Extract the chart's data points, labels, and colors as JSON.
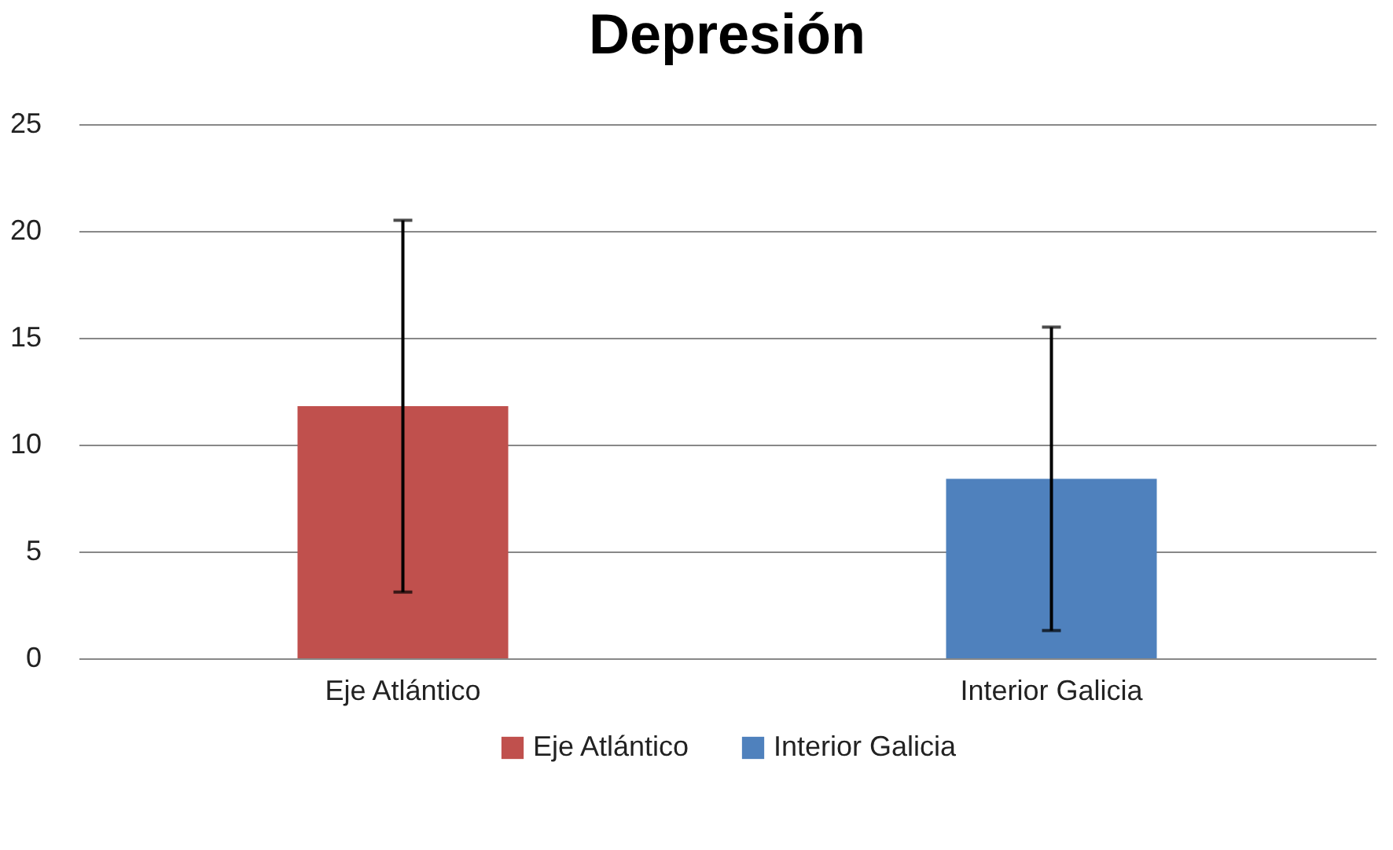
{
  "chart_data": {
    "type": "bar",
    "title": "Depresión",
    "categories": [
      "Eje Atlántico",
      "Interior Galicia"
    ],
    "series": [
      {
        "name": "Eje Atlántico",
        "color": "#c0504d",
        "values": [
          11.8,
          null
        ],
        "errors": [
          8.7,
          null
        ]
      },
      {
        "name": "Interior Galicia",
        "color": "#4f81bd",
        "values": [
          null,
          8.4
        ],
        "errors": [
          null,
          7.1
        ]
      }
    ],
    "ylim": [
      0,
      25
    ],
    "yticks": [
      0,
      5,
      10,
      15,
      20,
      25
    ],
    "grid": "y",
    "legend": "bottom"
  }
}
